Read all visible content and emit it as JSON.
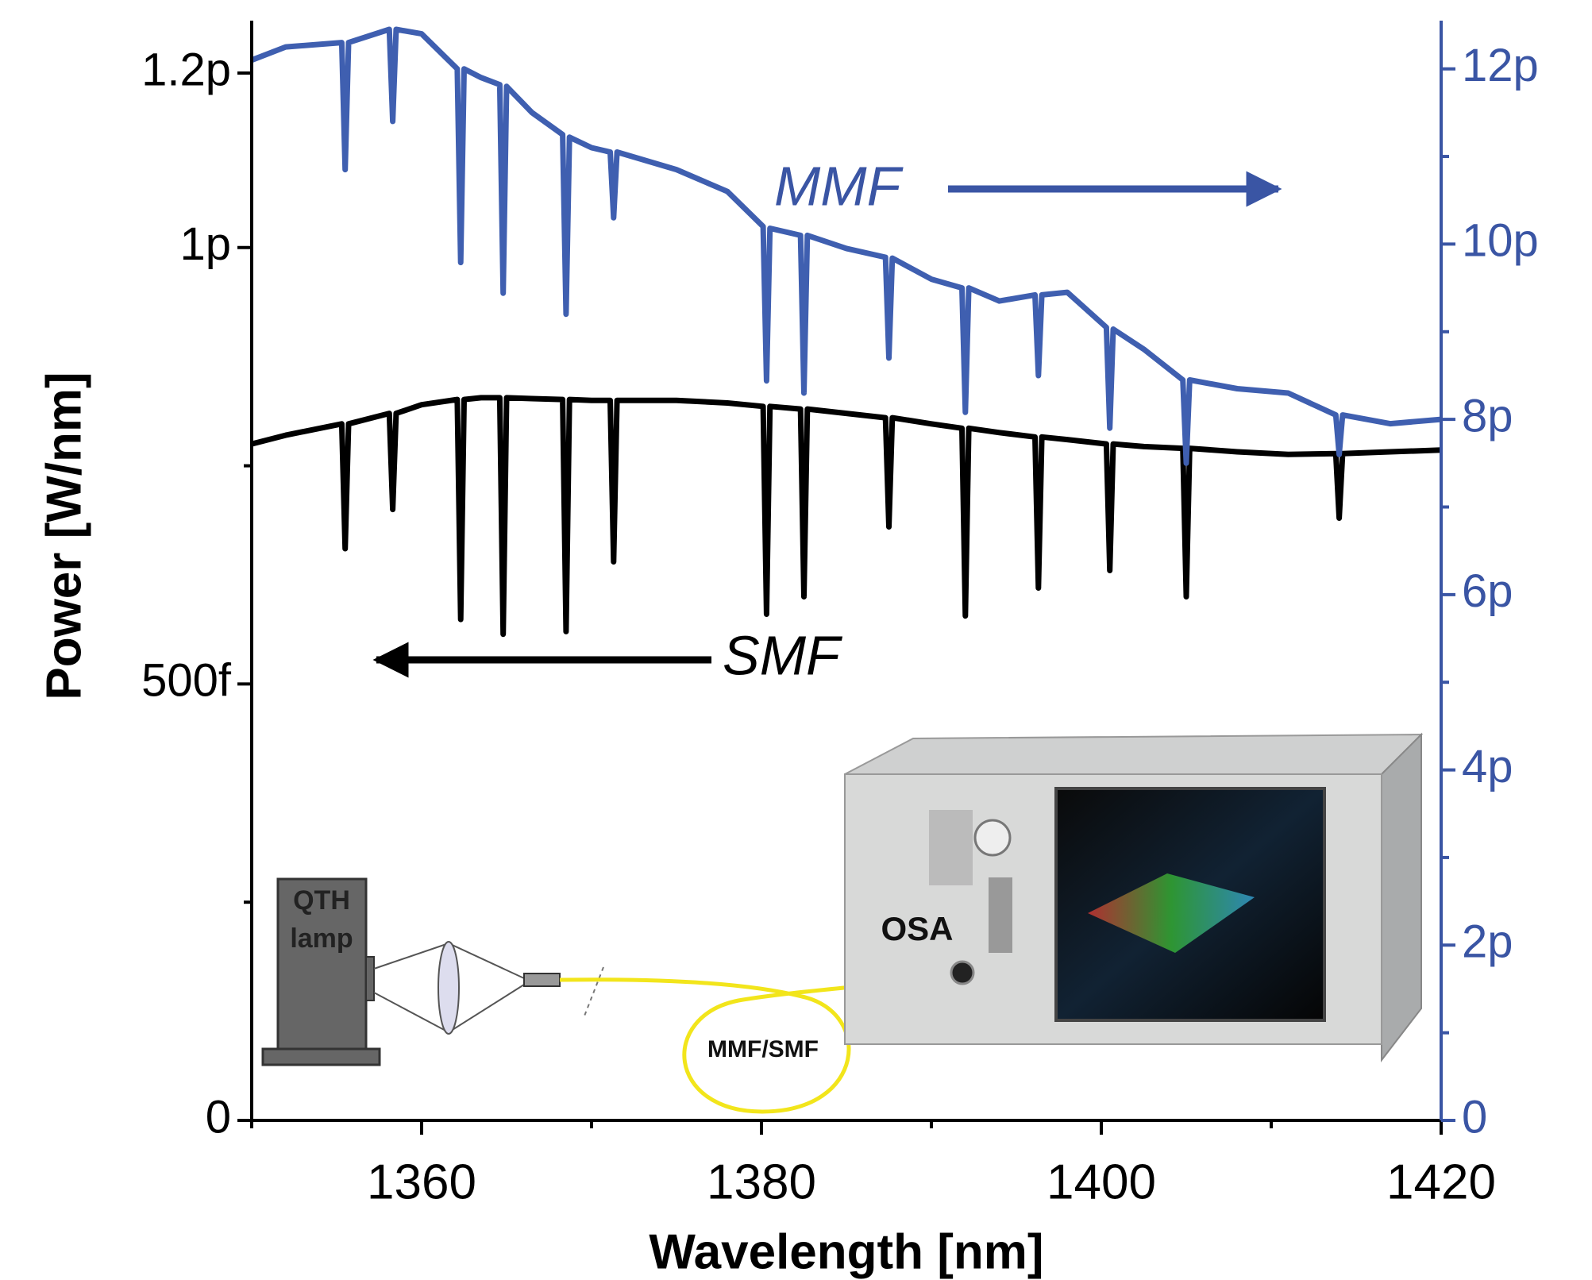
{
  "chart_data": {
    "type": "line",
    "xlabel": "Wavelength [nm]",
    "ylabel": "Power [W/nm]",
    "xlim": [
      1350,
      1420
    ],
    "xticks": [
      1360,
      1380,
      1400,
      1420
    ],
    "xminor": [
      1350,
      1370,
      1390,
      1410
    ],
    "ylim": [
      0,
      1.26e-12
    ],
    "yticks": [
      0,
      {
        "value": 5e-13,
        "label": "500f"
      },
      {
        "value": 1e-12,
        "label": "1p"
      },
      {
        "value": 1.2e-12,
        "label": "1.2p"
      }
    ],
    "yminor": [
      2.5e-13,
      7.5e-13
    ],
    "y2lim": [
      0,
      1.255e-11
    ],
    "y2ticks": [
      0,
      {
        "value": 2e-12,
        "label": "2p"
      },
      {
        "value": 4e-12,
        "label": "4p"
      },
      {
        "value": 6e-12,
        "label": "6p"
      },
      {
        "value": 8e-12,
        "label": "8p"
      },
      {
        "value": 1e-11,
        "label": "10p"
      },
      {
        "value": 1.2e-11,
        "label": "12p"
      }
    ],
    "y2minor": [
      1e-12,
      3e-12,
      5e-12,
      7e-12,
      9e-12,
      1.1e-11
    ],
    "y2color": "#3a55a4",
    "x": [
      1350,
      1352,
      1355.3,
      1355.5,
      1355.7,
      1358.1,
      1358.3,
      1358.5,
      1360,
      1362.1,
      1362.3,
      1362.5,
      1363.5,
      1364.6,
      1364.8,
      1365.0,
      1366.5,
      1368.3,
      1368.5,
      1368.7,
      1370,
      1371.1,
      1371.3,
      1371.5,
      1375,
      1378,
      1380.1,
      1380.3,
      1380.5,
      1382.3,
      1382.5,
      1382.7,
      1385,
      1387.3,
      1387.5,
      1387.7,
      1390,
      1391.8,
      1392.0,
      1392.2,
      1394,
      1396.1,
      1396.3,
      1396.5,
      1398,
      1400.3,
      1400.5,
      1400.7,
      1402.5,
      1404.8,
      1405.0,
      1405.2,
      1408,
      1411,
      1413.8,
      1414.0,
      1414.2,
      1417,
      1420
    ],
    "series": [
      {
        "name": "SMF",
        "color": "#000000",
        "axis": "y",
        "values": [
          7.75e-13,
          7.85e-13,
          7.98e-13,
          6.55e-13,
          7.98e-13,
          8.1e-13,
          7e-13,
          8.1e-13,
          8.2e-13,
          8.26e-13,
          5.74e-13,
          8.26e-13,
          8.28e-13,
          8.28e-13,
          5.57e-13,
          8.28e-13,
          8.27e-13,
          8.26e-13,
          5.6e-13,
          8.26e-13,
          8.25e-13,
          8.25e-13,
          6.4e-13,
          8.25e-13,
          8.25e-13,
          8.22e-13,
          8.18e-13,
          5.8e-13,
          8.18e-13,
          8.15e-13,
          6e-13,
          8.15e-13,
          8.1e-13,
          8.05e-13,
          6.8e-13,
          8.05e-13,
          7.98e-13,
          7.93e-13,
          5.78e-13,
          7.93e-13,
          7.88e-13,
          7.83e-13,
          6.1e-13,
          7.83e-13,
          7.8e-13,
          7.75e-13,
          6.3e-13,
          7.75e-13,
          7.72e-13,
          7.7e-13,
          6e-13,
          7.7e-13,
          7.66e-13,
          7.63e-13,
          7.64e-13,
          6.9e-13,
          7.64e-13,
          7.66e-13,
          7.68e-13
        ]
      },
      {
        "name": "MMF",
        "color": "#3f5fb0",
        "axis": "y2",
        "values": [
          1.21e-11,
          1.225e-11,
          1.23e-11,
          1.085e-11,
          1.23e-11,
          1.245e-11,
          1.14e-11,
          1.245e-11,
          1.24e-11,
          1.2e-11,
          9.79e-12,
          1.2e-11,
          1.19e-11,
          1.182e-11,
          9.44e-12,
          1.18e-11,
          1.15e-11,
          1.125e-11,
          9.2e-12,
          1.122e-11,
          1.11e-11,
          1.105e-11,
          1.03e-11,
          1.105e-11,
          1.085e-11,
          1.06e-11,
          1.02e-11,
          8.44e-12,
          1.018e-11,
          1.01e-11,
          8.3e-12,
          1.01e-11,
          9.95e-12,
          9.85e-12,
          8.7e-12,
          9.84e-12,
          9.6e-12,
          9.5e-12,
          8.08e-12,
          9.5e-12,
          9.35e-12,
          9.42e-12,
          8.5e-12,
          9.42e-12,
          9.45e-12,
          9.05e-12,
          7.9e-12,
          9.03e-12,
          8.8e-12,
          8.45e-12,
          7.5e-12,
          8.45e-12,
          8.35e-12,
          8.3e-12,
          8.05e-12,
          7.6e-12,
          8.05e-12,
          7.95e-12,
          8e-12
        ]
      }
    ],
    "inset": {
      "lamp": [
        "QTH",
        "lamp"
      ],
      "analyzer": "OSA",
      "fiber": "MMF/SMF"
    }
  }
}
